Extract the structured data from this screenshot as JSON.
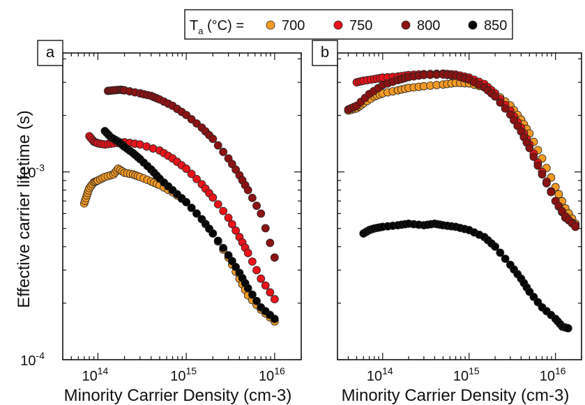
{
  "chart_data": {
    "type": "scatter",
    "y_axis": {
      "label": "Effective carrier lifetime (s)",
      "scale": "log",
      "ylim": [
        0.0001,
        0.0043
      ],
      "tick_labels": [
        {
          "value": 0.0001,
          "base": "10",
          "exp": "-4"
        },
        {
          "value": 0.001,
          "base": "10",
          "exp": "-3"
        }
      ]
    },
    "x_tick_labels": [
      {
        "base": "10",
        "exp": "14"
      },
      {
        "base": "10",
        "exp": "15"
      },
      {
        "base": "10",
        "exp": "16"
      }
    ],
    "legend": {
      "prefix_main": "T",
      "prefix_sub": "a",
      "prefix_rest": " (°C) =",
      "placement": "top-center",
      "entries": [
        {
          "name": "700",
          "color": "#f39a26"
        },
        {
          "name": "750",
          "color": "#e8141a"
        },
        {
          "name": "800",
          "color": "#8c1212"
        },
        {
          "name": "850",
          "color": "#050505"
        }
      ]
    },
    "panels": [
      {
        "label": "a",
        "xlabel": "Minority Carrier Density (cm-3)",
        "xscale": "log",
        "xlim": [
          40000000000000,
          20000000000000000
        ],
        "series": [
          {
            "name": "700",
            "color": "#f39a26",
            "points": [
              [
                70000000000000.0,
                0.00068
              ],
              [
                75000000000000.0,
                0.00075
              ],
              [
                80000000000000.0,
                0.00082
              ],
              [
                90000000000000.0,
                0.00088
              ],
              [
                100000000000000.0,
                0.0009
              ],
              [
                120000000000000.0,
                0.00094
              ],
              [
                150000000000000.0,
                0.00097
              ],
              [
                170000000000000.0,
                0.00104
              ],
              [
                200000000000000.0,
                0.00099
              ],
              [
                250000000000000.0,
                0.00097
              ],
              [
                300000000000000.0,
                0.00094
              ],
              [
                400000000000000.0,
                0.00089
              ],
              [
                500000000000000.0,
                0.00085
              ],
              [
                700000000000000.0,
                0.00078
              ],
              [
                1000000000000000.0,
                0.00069
              ],
              [
                1500000000000000.0,
                0.00056
              ],
              [
                2000000000000000.0,
                0.00047
              ],
              [
                3000000000000000.0,
                0.00035
              ],
              [
                4000000000000000.0,
                0.00027
              ],
              [
                5000000000000000.0,
                0.00022
              ],
              [
                7000000000000000.0,
                0.000185
              ],
              [
                1e+16,
                0.00016
              ]
            ]
          },
          {
            "name": "750",
            "color": "#e8141a",
            "points": [
              [
                80000000000000.0,
                0.00155
              ],
              [
                90000000000000.0,
                0.00145
              ],
              [
                100000000000000.0,
                0.00142
              ],
              [
                120000000000000.0,
                0.0014
              ],
              [
                150000000000000.0,
                0.00142
              ],
              [
                200000000000000.0,
                0.00144
              ],
              [
                300000000000000.0,
                0.0014
              ],
              [
                500000000000000.0,
                0.0013
              ],
              [
                700000000000000.0,
                0.00118
              ],
              [
                1000000000000000.0,
                0.00104
              ],
              [
                1500000000000000.0,
                0.00086
              ],
              [
                2000000000000000.0,
                0.00073
              ],
              [
                3000000000000000.0,
                0.00057
              ],
              [
                4000000000000000.0,
                0.00045
              ],
              [
                5000000000000000.0,
                0.00037
              ],
              [
                7000000000000000.0,
                0.00027
              ],
              [
                1e+16,
                0.00021
              ]
            ]
          },
          {
            "name": "800",
            "color": "#8c1212",
            "points": [
              [
                130000000000000.0,
                0.0027
              ],
              [
                150000000000000.0,
                0.00272
              ],
              [
                180000000000000.0,
                0.00274
              ],
              [
                200000000000000.0,
                0.00272
              ],
              [
                300000000000000.0,
                0.00262
              ],
              [
                400000000000000.0,
                0.00254
              ],
              [
                500000000000000.0,
                0.00243
              ],
              [
                700000000000000.0,
                0.00225
              ],
              [
                1000000000000000.0,
                0.00201
              ],
              [
                1500000000000000.0,
                0.00172
              ],
              [
                2000000000000000.0,
                0.0015
              ],
              [
                3000000000000000.0,
                0.00118
              ],
              [
                4000000000000000.0,
                0.00096
              ],
              [
                5000000000000000.0,
                0.0008
              ],
              [
                7000000000000000.0,
                0.0006
              ],
              [
                1e+16,
                0.00035
              ]
            ]
          },
          {
            "name": "850",
            "color": "#050505",
            "points": [
              [
                120000000000000.0,
                0.00165
              ],
              [
                140000000000000.0,
                0.00153
              ],
              [
                170000000000000.0,
                0.00145
              ],
              [
                200000000000000.0,
                0.00136
              ],
              [
                250000000000000.0,
                0.00126
              ],
              [
                300000000000000.0,
                0.00117
              ],
              [
                400000000000000.0,
                0.00103
              ],
              [
                500000000000000.0,
                0.00092
              ],
              [
                700000000000000.0,
                0.0008
              ],
              [
                1000000000000000.0,
                0.00069
              ],
              [
                1500000000000000.0,
                0.00056
              ],
              [
                2000000000000000.0,
                0.00047
              ],
              [
                3000000000000000.0,
                0.00036
              ],
              [
                4000000000000000.0,
                0.00029
              ],
              [
                5000000000000000.0,
                0.00024
              ],
              [
                7000000000000000.0,
                0.00019
              ],
              [
                1e+16,
                0.000165
              ]
            ]
          }
        ]
      },
      {
        "label": "b",
        "xlabel": "Minority Carrier Density (cm-3)",
        "xscale": "log",
        "xlim": [
          30000000000000,
          20000000000000000
        ],
        "series": [
          {
            "name": "700",
            "color": "#f39a26",
            "points": [
              [
                40000000000000.0,
                0.00212
              ],
              [
                50000000000000.0,
                0.00218
              ],
              [
                60000000000000.0,
                0.00232
              ],
              [
                80000000000000.0,
                0.00252
              ],
              [
                100000000000000.0,
                0.00262
              ],
              [
                150000000000000.0,
                0.00272
              ],
              [
                200000000000000.0,
                0.0028
              ],
              [
                300000000000000.0,
                0.00286
              ],
              [
                500000000000000.0,
                0.00292
              ],
              [
                700000000000000.0,
                0.00298
              ],
              [
                1000000000000000.0,
                0.00296
              ],
              [
                1500000000000000.0,
                0.00282
              ],
              [
                2000000000000000.0,
                0.00262
              ],
              [
                3000000000000000.0,
                0.00226
              ],
              [
                4000000000000000.0,
                0.0019
              ],
              [
                5000000000000000.0,
                0.0016
              ],
              [
                7000000000000000.0,
                0.00118
              ],
              [
                1e+16,
                0.00083
              ],
              [
                1.3e+16,
                0.00064
              ],
              [
                1.7e+16,
                0.00053
              ]
            ]
          },
          {
            "name": "750",
            "color": "#e8141a",
            "points": [
              [
                50000000000000.0,
                0.003
              ],
              [
                60000000000000.0,
                0.00306
              ],
              [
                80000000000000.0,
                0.00312
              ],
              [
                100000000000000.0,
                0.00318
              ],
              [
                150000000000000.0,
                0.00322
              ],
              [
                200000000000000.0,
                0.00328
              ],
              [
                300000000000000.0,
                0.00332
              ],
              [
                500000000000000.0,
                0.00334
              ],
              [
                700000000000000.0,
                0.0033
              ],
              [
                1000000000000000.0,
                0.00318
              ],
              [
                1500000000000000.0,
                0.00294
              ],
              [
                2000000000000000.0,
                0.00262
              ],
              [
                3000000000000000.0,
                0.00212
              ],
              [
                4000000000000000.0,
                0.00172
              ],
              [
                5000000000000000.0,
                0.0014
              ],
              [
                7000000000000000.0,
                0.001
              ],
              [
                1e+16,
                0.0007
              ],
              [
                1.3e+16,
                0.00057
              ],
              [
                1.7e+16,
                0.00052
              ]
            ]
          },
          {
            "name": "800",
            "color": "#8c1212",
            "points": [
              [
                40000000000000.0,
                0.00215
              ],
              [
                50000000000000.0,
                0.00225
              ],
              [
                70000000000000.0,
                0.0026
              ],
              [
                100000000000000.0,
                0.0029
              ],
              [
                150000000000000.0,
                0.00308
              ],
              [
                200000000000000.0,
                0.0032
              ],
              [
                300000000000000.0,
                0.00328
              ],
              [
                500000000000000.0,
                0.0033
              ],
              [
                700000000000000.0,
                0.00325
              ],
              [
                1000000000000000.0,
                0.0031
              ],
              [
                1500000000000000.0,
                0.00282
              ],
              [
                2000000000000000.0,
                0.00252
              ],
              [
                3000000000000000.0,
                0.00202
              ],
              [
                4000000000000000.0,
                0.00164
              ],
              [
                5000000000000000.0,
                0.00134
              ],
              [
                7000000000000000.0,
                0.00097
              ],
              [
                1e+16,
                0.0007
              ],
              [
                1.3e+16,
                0.00058
              ],
              [
                1.7e+16,
                0.00051
              ]
            ]
          },
          {
            "name": "850",
            "color": "#050505",
            "points": [
              [
                60000000000000.0,
                0.00047
              ],
              [
                70000000000000.0,
                0.00049
              ],
              [
                80000000000000.0,
                0.0005
              ],
              [
                100000000000000.0,
                0.00051
              ],
              [
                150000000000000.0,
                0.00052
              ],
              [
                200000000000000.0,
                0.00053
              ],
              [
                300000000000000.0,
                0.00052
              ],
              [
                400000000000000.0,
                0.00053
              ],
              [
                500000000000000.0,
                0.00052
              ],
              [
                700000000000000.0,
                0.00051
              ],
              [
                1000000000000000.0,
                0.00049
              ],
              [
                1500000000000000.0,
                0.00045
              ],
              [
                2000000000000000.0,
                0.0004
              ],
              [
                3000000000000000.0,
                0.00032
              ],
              [
                4000000000000000.0,
                0.00027
              ],
              [
                5000000000000000.0,
                0.00023
              ],
              [
                7000000000000000.0,
                0.00019
              ],
              [
                1e+16,
                0.000165
              ],
              [
                1.2e+16,
                0.00015
              ],
              [
                1.4e+16,
                0.000147
              ]
            ]
          }
        ]
      }
    ]
  }
}
